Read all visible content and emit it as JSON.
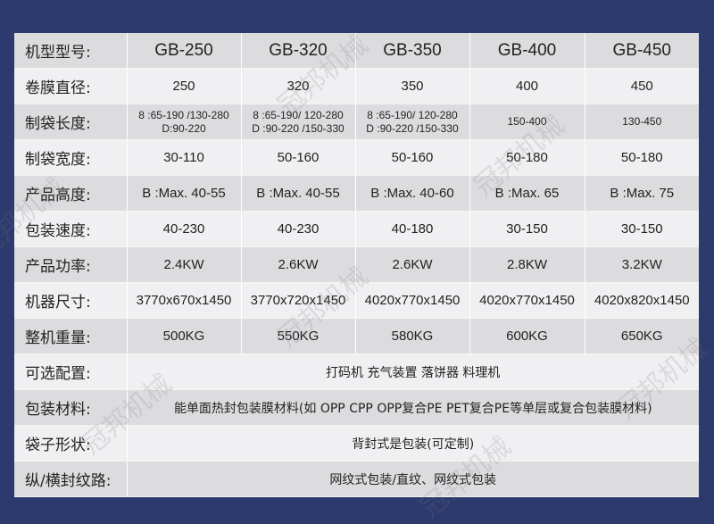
{
  "watermark": "冠邦机械",
  "colors": {
    "background": "#2d3a6e",
    "row_dark": "#dcdcdf",
    "row_light": "#f0f0f2"
  },
  "header": {
    "label": "机型型号:",
    "models": [
      "GB-250",
      "GB-320",
      "GB-350",
      "GB-400",
      "GB-450"
    ]
  },
  "rows": [
    {
      "label": "卷膜直径:",
      "values": [
        "250",
        "320",
        "350",
        "400",
        "450"
      ]
    },
    {
      "label": "制袋长度:",
      "values": [
        [
          "8 :65-190 /130-280",
          "D:90-220"
        ],
        [
          "8 :65-190/ 120-280",
          "D :90-220 /150-330"
        ],
        [
          "8 :65-190/ 120-280",
          "D :90-220 /150-330"
        ],
        [
          "150-400",
          ""
        ],
        [
          "130-450",
          ""
        ]
      ]
    },
    {
      "label": "制袋宽度:",
      "values": [
        "30-110",
        "50-160",
        "50-160",
        "50-180",
        "50-180"
      ]
    },
    {
      "label": "产品高度:",
      "values": [
        "B :Max. 40-55",
        "B :Max. 40-55",
        "B :Max. 40-60",
        "B :Max. 65",
        "B :Max. 75"
      ]
    },
    {
      "label": "包装速度:",
      "values": [
        "40-230",
        "40-230",
        "40-180",
        "30-150",
        "30-150"
      ]
    },
    {
      "label": "产品功率:",
      "values": [
        "2.4KW",
        "2.6KW",
        "2.6KW",
        "2.8KW",
        "3.2KW"
      ]
    },
    {
      "label": "机器尺寸:",
      "values": [
        "3770x670x1450",
        "3770x720x1450",
        "4020x770x1450",
        "4020x770x1450",
        "4020x820x1450"
      ]
    },
    {
      "label": "整机重量:",
      "values": [
        "500KG",
        "550KG",
        "580KG",
        "600KG",
        "650KG"
      ]
    }
  ],
  "span_rows": [
    {
      "label": "可选配置:",
      "value": "打码机 充气装置 落饼器 料理机"
    },
    {
      "label": "包装材料:",
      "value": "能单面热封包装膜材料(如 OPP CPP OPP复合PE PET复合PE等单层或复合包装膜材料)"
    },
    {
      "label": "袋子形状:",
      "value": "背封式是包装(可定制)"
    },
    {
      "label": "纵/横封纹路:",
      "value": "网纹式包装/直纹、网纹式包装"
    }
  ]
}
